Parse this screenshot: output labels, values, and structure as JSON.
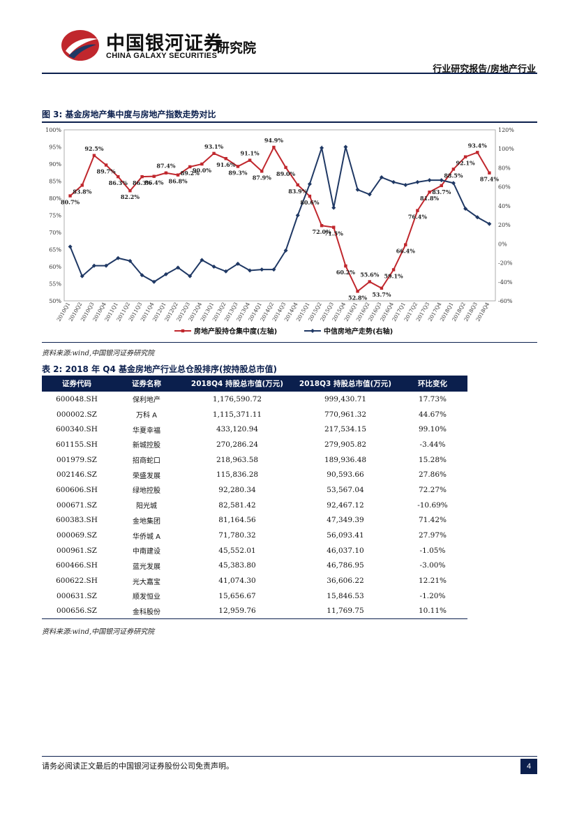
{
  "header": {
    "brand_cn": "中国银河证券",
    "brand_en": "CHINA GALAXY SECURITIES",
    "institute": "研究院",
    "report_category": "行业研究报告/房地产行业"
  },
  "figure": {
    "title": "图 3: 基金房地产集中度与房地产指数走势对比",
    "source": "资料来源:wind,中国银河证券研究院"
  },
  "chart_data": {
    "type": "line",
    "title": "基金房地产集中度与房地产指数走势对比",
    "categories": [
      "2010Q1",
      "2010Q2",
      "2010Q3",
      "2010Q4",
      "2011Q1",
      "2011Q2",
      "2011Q3",
      "2011Q4",
      "2012Q1",
      "2012Q2",
      "2012Q3",
      "2012Q4",
      "2013Q1",
      "2013Q2",
      "2013Q3",
      "2013Q4",
      "2014Q1",
      "2014Q2",
      "2014Q3",
      "2014Q4",
      "2015Q1",
      "2015Q2",
      "2015Q3",
      "2015Q4",
      "2016Q1",
      "2016Q2",
      "2016Q3",
      "2016Q4",
      "2017Q1",
      "2017Q2",
      "2017Q3",
      "2017Q4",
      "2018Q1",
      "2018Q2",
      "2018Q3",
      "2018Q4"
    ],
    "left_axis": {
      "min": 50,
      "max": 100,
      "ticks": [
        "50%",
        "55%",
        "60%",
        "65%",
        "70%",
        "75%",
        "80%",
        "85%",
        "90%",
        "95%",
        "100%"
      ]
    },
    "right_axis": {
      "min": -60,
      "max": 120,
      "ticks": [
        "-60%",
        "-40%",
        "-20%",
        "0%",
        "20%",
        "40%",
        "60%",
        "80%",
        "100%",
        "120%"
      ]
    },
    "series": [
      {
        "name": "房地产股持仓集中度(左轴)",
        "axis": "left",
        "color": "#c0272d",
        "marker": "square",
        "values": [
          80.7,
          83.8,
          92.5,
          89.7,
          86.3,
          82.2,
          86.3,
          86.4,
          87.4,
          86.8,
          89.2,
          90.0,
          93.1,
          91.6,
          89.3,
          91.1,
          87.9,
          94.9,
          89.0,
          83.9,
          80.6,
          72.0,
          71.5,
          60.2,
          52.8,
          55.6,
          53.7,
          59.1,
          66.4,
          76.4,
          81.8,
          83.7,
          88.5,
          92.1,
          93.4,
          87.4
        ],
        "labels": [
          "80.7%",
          "83.8%",
          "92.5%",
          "89.7%",
          "86.3%",
          "82.2%",
          "86.3%",
          "86.4%",
          "87.4%",
          "86.8%",
          "89.2%",
          "90.0%",
          "93.1%",
          "91.6%",
          "89.3%",
          "91.1%",
          "87.9%",
          "94.9%",
          "89.0%",
          "83.9%",
          "80.6%",
          "72.0%",
          "71.5%",
          "60.2%",
          "52.8%",
          "55.6%",
          "53.7%",
          "59.1%",
          "66.4%",
          "76.4%",
          "81.8%",
          "83.7%",
          "88.5%",
          "92.1%",
          "93.4%",
          "87.4%"
        ]
      },
      {
        "name": "中信房地产走势(右轴)",
        "axis": "right",
        "color": "#1f3864",
        "marker": "diamond",
        "values": [
          -3,
          -34,
          -23,
          -23,
          -15,
          -18,
          -33,
          -40,
          -32,
          -25,
          -34,
          -17,
          -24,
          -29,
          -21,
          -28,
          -27,
          -27,
          -7,
          30,
          63,
          101,
          38,
          102,
          57,
          52,
          70,
          65,
          62,
          65,
          67,
          67,
          64,
          37,
          28,
          21
        ]
      }
    ],
    "legend": [
      "房地产股持仓集中度(左轴)",
      "中信房地产走势(右轴)"
    ],
    "legend_position": "bottom-center"
  },
  "table": {
    "title": "表 2: 2018 年 Q4 基金房地产行业总仓股排序(按持股总市值)",
    "headers": [
      "证券代码",
      "证券名称",
      "2018Q4 持股总市值(万元)",
      "2018Q3 持股总市值(万元)",
      "环比变化"
    ],
    "rows": [
      [
        "600048.SH",
        "保利地产",
        "1,176,590.72",
        "999,430.71",
        "17.73%"
      ],
      [
        "000002.SZ",
        "万科 A",
        "1,115,371.11",
        "770,961.32",
        "44.67%"
      ],
      [
        "600340.SH",
        "华夏幸福",
        "433,120.94",
        "217,534.15",
        "99.10%"
      ],
      [
        "601155.SH",
        "新城控股",
        "270,286.24",
        "279,905.82",
        "-3.44%"
      ],
      [
        "001979.SZ",
        "招商蛇口",
        "218,963.58",
        "189,936.48",
        "15.28%"
      ],
      [
        "002146.SZ",
        "荣盛发展",
        "115,836.28",
        "90,593.66",
        "27.86%"
      ],
      [
        "600606.SH",
        "绿地控股",
        "92,280.34",
        "53,567.04",
        "72.27%"
      ],
      [
        "000671.SZ",
        "阳光城",
        "82,581.42",
        "92,467.12",
        "-10.69%"
      ],
      [
        "600383.SH",
        "金地集团",
        "81,164.56",
        "47,349.39",
        "71.42%"
      ],
      [
        "000069.SZ",
        "华侨城 A",
        "71,780.32",
        "56,093.41",
        "27.97%"
      ],
      [
        "000961.SZ",
        "中南建设",
        "45,552.01",
        "46,037.10",
        "-1.05%"
      ],
      [
        "600466.SH",
        "蓝光发展",
        "45,383.80",
        "46,786.95",
        "-3.00%"
      ],
      [
        "600622.SH",
        "光大嘉宝",
        "41,074.30",
        "36,606.22",
        "12.21%"
      ],
      [
        "000631.SZ",
        "顺发恒业",
        "15,656.67",
        "15,846.53",
        "-1.20%"
      ],
      [
        "000656.SZ",
        "金科股份",
        "12,959.76",
        "11,769.75",
        "10.11%"
      ]
    ],
    "source": "资料来源:wind,中国银河证券研究院"
  },
  "footer": {
    "disclaimer": "请务必阅读正文最后的中国银河证券股份公司免责声明。",
    "page_number": "4"
  }
}
